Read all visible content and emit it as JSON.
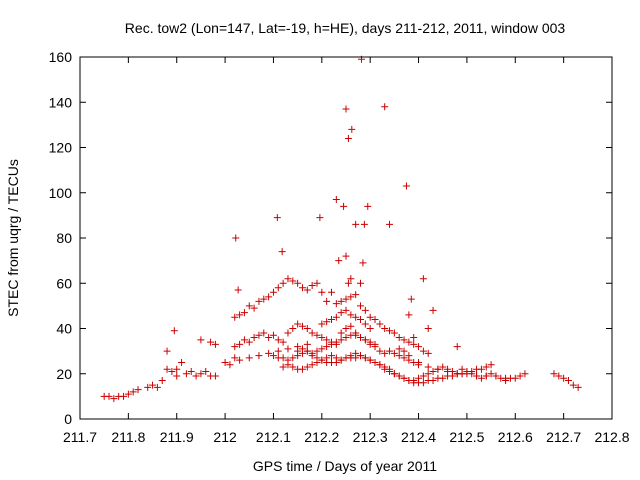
{
  "chart_data": {
    "type": "scatter",
    "title": "Rec. tow2 (Lon=147, Lat=-19, h=HE), days 211-212, 2011, window 003",
    "xlabel": "GPS time / Days of year 2011",
    "ylabel": "STEC from uqrg / TECUs",
    "xlim": [
      211.7,
      212.8
    ],
    "ylim": [
      0,
      160
    ],
    "x_ticks": [
      "211.7",
      "211.8",
      "211.9",
      "212",
      "212.1",
      "212.2",
      "212.3",
      "212.4",
      "212.5",
      "212.6",
      "212.7",
      "212.8"
    ],
    "y_ticks": [
      "0",
      "20",
      "40",
      "60",
      "80",
      "100",
      "120",
      "140",
      "160"
    ],
    "grid": false,
    "marker": "+",
    "color": "#cc0000",
    "series": [
      {
        "x": [
          211.75,
          211.76,
          211.77,
          211.78,
          211.79,
          211.8,
          211.81,
          211.82,
          211.84,
          211.85,
          211.86,
          211.87,
          211.88,
          211.89,
          211.9,
          211.9,
          211.91,
          211.92,
          211.93,
          211.94,
          211.95,
          211.96,
          211.97,
          211.98,
          211.88,
          211.895,
          211.95,
          211.97,
          211.98,
          212.0,
          212.01,
          212.02,
          212.03,
          212.04,
          212.05,
          212.06,
          212.07,
          212.08,
          212.09,
          212.1,
          212.11,
          212.12,
          212.13,
          212.14,
          212.15,
          212.16,
          212.17,
          212.18,
          212.19,
          212.2,
          212.21,
          212.22,
          212.23,
          212.24,
          212.25,
          212.26,
          212.27,
          212.28,
          212.29,
          212.3,
          212.31,
          212.32,
          212.33,
          212.34,
          212.35,
          212.36,
          212.37,
          212.38,
          212.39,
          212.4,
          212.41,
          212.42,
          212.02,
          212.03,
          212.04,
          212.05,
          212.06,
          212.07,
          212.08,
          212.09,
          212.1,
          212.11,
          212.12,
          212.13,
          212.14,
          212.15,
          212.16,
          212.17,
          212.18,
          212.19,
          212.2,
          212.21,
          212.22,
          212.23,
          212.24,
          212.25,
          212.26,
          212.27,
          212.28,
          212.29,
          212.3,
          212.31,
          212.32,
          212.33,
          212.34,
          212.35,
          212.36,
          212.37,
          212.38,
          212.39,
          212.4,
          212.1,
          212.11,
          212.12,
          212.13,
          212.14,
          212.15,
          212.16,
          212.17,
          212.18,
          212.19,
          212.2,
          212.21,
          212.22,
          212.23,
          212.24,
          212.25,
          212.26,
          212.27,
          212.28,
          212.29,
          212.3,
          212.31,
          212.32,
          212.33,
          212.34,
          212.35,
          212.36,
          212.37,
          212.38,
          212.39,
          212.4,
          212.41,
          212.42,
          212.43,
          212.44,
          212.45,
          212.46,
          212.47,
          212.48,
          212.49,
          212.5,
          212.51,
          212.52,
          212.53,
          212.54,
          212.55,
          212.56,
          212.57,
          212.58,
          212.59,
          212.6,
          212.61,
          212.62,
          212.12,
          212.13,
          212.14,
          212.15,
          212.16,
          212.17,
          212.18,
          212.19,
          212.2,
          212.21,
          212.22,
          212.23,
          212.24,
          212.25,
          212.26,
          212.27,
          212.28,
          212.29,
          212.3,
          212.31,
          212.32,
          212.33,
          212.34,
          212.35,
          212.36,
          212.37,
          212.38,
          212.39,
          212.4,
          212.41,
          212.42,
          212.43,
          212.44,
          212.45,
          212.46,
          212.47,
          212.48,
          212.49,
          212.5,
          212.51,
          212.52,
          212.53,
          212.54,
          212.55,
          212.15,
          212.16,
          212.17,
          212.18,
          212.19,
          212.2,
          212.21,
          212.22,
          212.23,
          212.24,
          212.25,
          212.26,
          212.27,
          212.28,
          212.29,
          212.3,
          212.31,
          212.2,
          212.21,
          212.22,
          212.23,
          212.24,
          212.25,
          212.26,
          212.27,
          212.28,
          212.29,
          212.3,
          212.02,
          212.03,
          212.05,
          212.07,
          212.09,
          212.11,
          212.13,
          212.15,
          212.17,
          212.36,
          212.37,
          212.38,
          212.4,
          212.42,
          212.44,
          212.46,
          212.48,
          212.5,
          212.52,
          212.54,
          212.56,
          212.58,
          212.68,
          212.69,
          212.7,
          212.71,
          212.72,
          212.73,
          212.022,
          212.027,
          212.108,
          212.118,
          212.196,
          212.23,
          212.245,
          212.25,
          212.255,
          212.262,
          212.27,
          212.282,
          212.288,
          212.295,
          212.25,
          212.34,
          212.375,
          212.385,
          212.33,
          212.235,
          212.26,
          212.28,
          212.285,
          212.255,
          212.41,
          212.43,
          212.38,
          212.42,
          212.39,
          212.48,
          212.49
        ],
        "y": [
          10,
          10,
          9,
          10,
          10,
          11,
          12,
          13,
          14,
          15,
          14,
          17,
          22,
          21,
          22,
          19,
          25,
          20,
          21,
          19,
          20,
          21,
          19,
          19,
          30,
          39,
          35,
          34,
          33,
          25,
          24,
          45,
          46,
          47,
          50,
          49,
          52,
          53,
          54,
          56,
          58,
          60,
          62,
          61,
          60,
          58,
          57,
          59,
          60,
          56,
          52,
          56,
          51,
          52,
          53,
          54,
          55,
          50,
          48,
          45,
          44,
          42,
          40,
          39,
          38,
          36,
          35,
          34,
          33,
          32,
          30,
          29,
          32,
          33,
          35,
          34,
          36,
          37,
          38,
          36,
          37,
          35,
          34,
          38,
          40,
          42,
          41,
          40,
          38,
          37,
          36,
          35,
          34,
          33,
          38,
          40,
          41,
          37,
          36,
          35,
          33,
          32,
          30,
          29,
          30,
          29,
          28,
          27,
          26,
          25,
          24,
          28,
          27,
          27,
          26,
          27,
          28,
          29,
          30,
          28,
          27,
          26,
          25,
          25,
          25,
          26,
          27,
          27,
          27,
          28,
          27,
          26,
          25,
          24,
          22,
          21,
          20,
          19,
          18,
          17,
          17,
          18,
          19,
          20,
          21,
          22,
          23,
          22,
          21,
          20,
          20,
          21,
          20,
          19,
          18,
          19,
          20,
          19,
          18,
          17,
          18,
          18,
          19,
          20,
          23,
          24,
          23,
          22,
          22,
          23,
          24,
          25,
          26,
          27,
          28,
          27,
          26,
          27,
          28,
          29,
          28,
          27,
          26,
          25,
          24,
          23,
          22,
          20,
          19,
          18,
          17,
          16,
          16,
          16,
          17,
          17,
          18,
          18,
          19,
          19,
          20,
          20,
          21,
          21,
          22,
          22,
          23,
          24,
          30,
          31,
          30,
          29,
          30,
          31,
          32,
          33,
          34,
          35,
          36,
          37,
          38,
          36,
          35,
          34,
          33,
          42,
          43,
          44,
          45,
          47,
          48,
          46,
          45,
          44,
          42,
          40,
          27,
          26,
          27,
          28,
          29,
          30,
          31,
          32,
          33,
          31,
          30,
          28,
          25,
          23,
          22,
          21,
          20,
          20,
          19,
          19,
          19,
          18,
          20,
          19,
          18,
          17,
          15,
          14,
          80,
          57,
          89,
          74,
          89,
          97,
          94,
          137,
          124,
          128,
          86,
          159,
          86,
          94,
          72,
          86,
          103,
          53,
          138,
          70,
          62,
          60,
          69,
          60,
          62,
          48,
          46,
          40,
          36,
          32,
          22
        ]
      }
    ]
  }
}
